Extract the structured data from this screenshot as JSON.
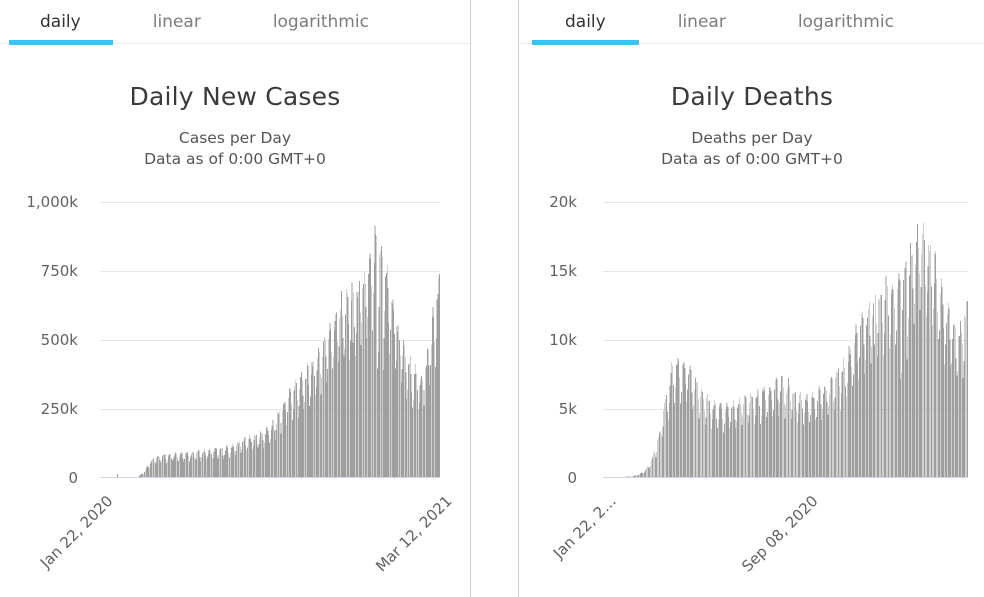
{
  "tabs": {
    "items": [
      {
        "label": "daily",
        "active": true
      },
      {
        "label": "linear",
        "active": false
      },
      {
        "label": "logarithmic",
        "active": false
      }
    ]
  },
  "colors": {
    "accent": "#41c0f3",
    "bar": "#9f9f9f",
    "grid": "#e6e6e6",
    "axis_line": "#ccd6eb",
    "panel_border": "#cccccc",
    "title": "#3a3a3a",
    "subtitle": "#555555",
    "tick_label": "#616161",
    "tab_active": "#333333",
    "tab_inactive": "#7c7c7c"
  },
  "chart_data": [
    {
      "type": "bar",
      "title": "Daily New Cases",
      "subtitle_line1": "Cases per Day",
      "subtitle_line2": "Data as of 0:00 GMT+0",
      "yticks": [
        "1,000k",
        "750k",
        "500k",
        "250k",
        "0"
      ],
      "ylim": [
        0,
        1000000
      ],
      "ymax": 1000000,
      "grid": true,
      "days_total": 416,
      "xlabels": [
        {
          "label": "Jan 22, 2020",
          "day": 0
        },
        {
          "label": "Mar 12, 2021",
          "day": 415
        }
      ],
      "weekly_pattern": [
        1.03,
        1.05,
        1.01,
        0.84,
        0.68,
        0.78,
        0.96
      ],
      "holiday_dips": [
        [
          309,
          0.72
        ],
        [
          339,
          0.55
        ],
        [
          340,
          0.8
        ],
        [
          346,
          0.62
        ]
      ],
      "envelope_keypoints": [
        [
          0,
          400
        ],
        [
          8,
          1800
        ],
        [
          14,
          2600
        ],
        [
          20,
          2800
        ],
        [
          21,
          14200
        ],
        [
          22,
          4200
        ],
        [
          27,
          1700
        ],
        [
          34,
          1400
        ],
        [
          40,
          1700
        ],
        [
          46,
          5000
        ],
        [
          52,
          18000
        ],
        [
          57,
          40000
        ],
        [
          61,
          62000
        ],
        [
          68,
          76000
        ],
        [
          76,
          83000
        ],
        [
          86,
          85000
        ],
        [
          96,
          86000
        ],
        [
          106,
          89000
        ],
        [
          116,
          92000
        ],
        [
          126,
          96000
        ],
        [
          136,
          99000
        ],
        [
          146,
          102000
        ],
        [
          153,
          104000
        ],
        [
          160,
          113000
        ],
        [
          168,
          124000
        ],
        [
          176,
          138000
        ],
        [
          184,
          147000
        ],
        [
          192,
          153000
        ],
        [
          200,
          163000
        ],
        [
          208,
          182000
        ],
        [
          216,
          215000
        ],
        [
          224,
          262000
        ],
        [
          232,
          312000
        ],
        [
          240,
          332000
        ],
        [
          248,
          352000
        ],
        [
          256,
          390000
        ],
        [
          264,
          425000
        ],
        [
          272,
          470000
        ],
        [
          280,
          540000
        ],
        [
          288,
          575000
        ],
        [
          296,
          615000
        ],
        [
          304,
          648000
        ],
        [
          310,
          655000
        ],
        [
          316,
          672000
        ],
        [
          322,
          695000
        ],
        [
          328,
          742000
        ],
        [
          333,
          805000
        ],
        [
          336,
          840000
        ],
        [
          340,
          818000
        ],
        [
          344,
          798000
        ],
        [
          348,
          762000
        ],
        [
          352,
          692000
        ],
        [
          358,
          625000
        ],
        [
          364,
          540000
        ],
        [
          370,
          470000
        ],
        [
          376,
          415000
        ],
        [
          382,
          385000
        ],
        [
          388,
          365000
        ],
        [
          394,
          362000
        ],
        [
          399,
          415000
        ],
        [
          404,
          520000
        ],
        [
          408,
          580000
        ],
        [
          412,
          645000
        ],
        [
          415,
          700000
        ]
      ]
    },
    {
      "type": "bar",
      "title": "Daily Deaths",
      "subtitle_line1": "Deaths per Day",
      "subtitle_line2": "Data as of 0:00 GMT+0",
      "yticks": [
        "20k",
        "15k",
        "10k",
        "5k",
        "0"
      ],
      "ylim": [
        0,
        20000
      ],
      "ymax": 20000,
      "grid": true,
      "days_total": 416,
      "xlabels": [
        {
          "label": "Jan 22, 2…",
          "day": 0
        },
        {
          "label": "Sep 08, 2020",
          "day": 230
        }
      ],
      "weekly_pattern": [
        1.03,
        1.05,
        1.01,
        0.84,
        0.68,
        0.78,
        0.96
      ],
      "holiday_dips": [
        [
          309,
          0.72
        ],
        [
          339,
          0.55
        ],
        [
          340,
          0.8
        ],
        [
          346,
          0.62
        ]
      ],
      "envelope_keypoints": [
        [
          0,
          15
        ],
        [
          20,
          60
        ],
        [
          35,
          150
        ],
        [
          45,
          400
        ],
        [
          52,
          900
        ],
        [
          58,
          1800
        ],
        [
          64,
          3200
        ],
        [
          70,
          5200
        ],
        [
          78,
          7600
        ],
        [
          86,
          8400
        ],
        [
          94,
          8100
        ],
        [
          102,
          7300
        ],
        [
          110,
          6300
        ],
        [
          120,
          5600
        ],
        [
          130,
          5100
        ],
        [
          140,
          5000
        ],
        [
          150,
          5200
        ],
        [
          160,
          5500
        ],
        [
          170,
          5800
        ],
        [
          180,
          6100
        ],
        [
          190,
          6600
        ],
        [
          200,
          6900
        ],
        [
          210,
          6600
        ],
        [
          220,
          6100
        ],
        [
          230,
          5800
        ],
        [
          240,
          5900
        ],
        [
          250,
          6200
        ],
        [
          260,
          6800
        ],
        [
          270,
          7600
        ],
        [
          280,
          8800
        ],
        [
          290,
          10500
        ],
        [
          300,
          11800
        ],
        [
          310,
          12600
        ],
        [
          318,
          13200
        ],
        [
          326,
          13800
        ],
        [
          334,
          14400
        ],
        [
          341,
          15000
        ],
        [
          348,
          15800
        ],
        [
          356,
          16800
        ],
        [
          363,
          17400
        ],
        [
          368,
          17100
        ],
        [
          375,
          15700
        ],
        [
          382,
          14200
        ],
        [
          390,
          12600
        ],
        [
          397,
          11200
        ],
        [
          403,
          10300
        ],
        [
          408,
          10800
        ],
        [
          412,
          11700
        ],
        [
          415,
          12500
        ]
      ]
    }
  ]
}
